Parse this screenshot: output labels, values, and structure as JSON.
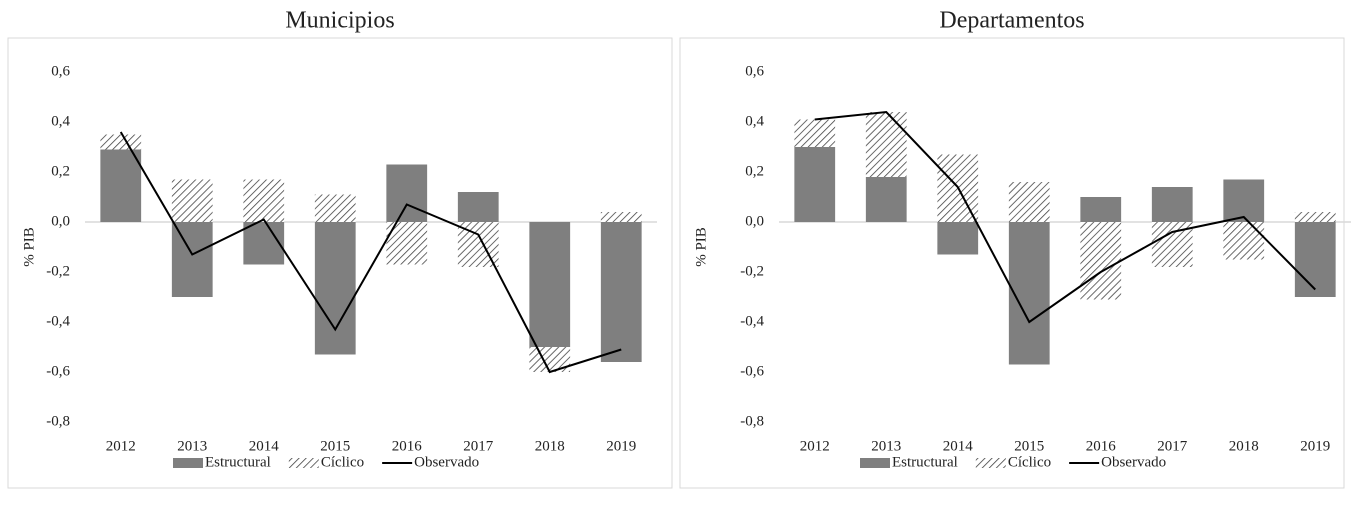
{
  "chart_data": [
    {
      "type": "bar",
      "title": "Municipios",
      "y_label": "% PIB",
      "categories": [
        "2012",
        "2013",
        "2014",
        "2015",
        "2016",
        "2017",
        "2018",
        "2019"
      ],
      "series": [
        {
          "name": "Estructural",
          "type": "bar",
          "color": "#7f7f7f",
          "hatch": false,
          "values": [
            0.29,
            -0.3,
            -0.17,
            -0.53,
            0.23,
            0.12,
            -0.5,
            -0.56
          ]
        },
        {
          "name": "Cíclico",
          "type": "bar",
          "color": "#555555",
          "hatch": true,
          "values": [
            0.06,
            0.17,
            0.17,
            0.11,
            -0.17,
            -0.18,
            -0.1,
            0.04
          ]
        },
        {
          "name": "Observado",
          "type": "line",
          "color": "#000000",
          "hatch": false,
          "values": [
            0.36,
            -0.13,
            0.01,
            -0.43,
            0.07,
            -0.05,
            -0.6,
            -0.51
          ]
        }
      ],
      "ylim": [
        -0.8,
        0.6
      ],
      "yticks": [
        {
          "value": 0.6,
          "label": "0,6"
        },
        {
          "value": 0.4,
          "label": "0,4"
        },
        {
          "value": 0.2,
          "label": "0,2"
        },
        {
          "value": 0,
          "label": "0,0"
        },
        {
          "value": -0.2,
          "label": "-0,2"
        },
        {
          "value": -0.4,
          "label": "-0,4"
        },
        {
          "value": -0.6,
          "label": "-0,6"
        },
        {
          "value": -0.8,
          "label": "-0,8"
        }
      ],
      "legend": "bottom"
    },
    {
      "type": "bar",
      "title": "Departamentos",
      "y_label": "% PIB",
      "categories": [
        "2012",
        "2013",
        "2014",
        "2015",
        "2016",
        "2017",
        "2018",
        "2019"
      ],
      "series": [
        {
          "name": "Estructural",
          "type": "bar",
          "color": "#7f7f7f",
          "hatch": false,
          "values": [
            0.3,
            0.18,
            -0.13,
            -0.57,
            0.1,
            0.14,
            0.17,
            -0.3
          ]
        },
        {
          "name": "Cíclico",
          "type": "bar",
          "color": "#555555",
          "hatch": true,
          "values": [
            0.11,
            0.26,
            0.27,
            0.16,
            -0.31,
            -0.18,
            -0.15,
            0.04
          ]
        },
        {
          "name": "Observado",
          "type": "line",
          "color": "#000000",
          "hatch": false,
          "values": [
            0.41,
            0.44,
            0.14,
            -0.4,
            -0.2,
            -0.04,
            0.02,
            -0.27
          ]
        }
      ],
      "ylim": [
        -0.8,
        0.6
      ],
      "yticks": [
        {
          "value": 0.6,
          "label": "0,6"
        },
        {
          "value": 0.4,
          "label": "0,4"
        },
        {
          "value": 0.2,
          "label": "0,2"
        },
        {
          "value": 0,
          "label": "0,0"
        },
        {
          "value": -0.2,
          "label": "-0,2"
        },
        {
          "value": -0.4,
          "label": "-0,4"
        },
        {
          "value": -0.6,
          "label": "-0,6"
        },
        {
          "value": -0.8,
          "label": "-0,8"
        }
      ],
      "legend": "bottom"
    }
  ]
}
